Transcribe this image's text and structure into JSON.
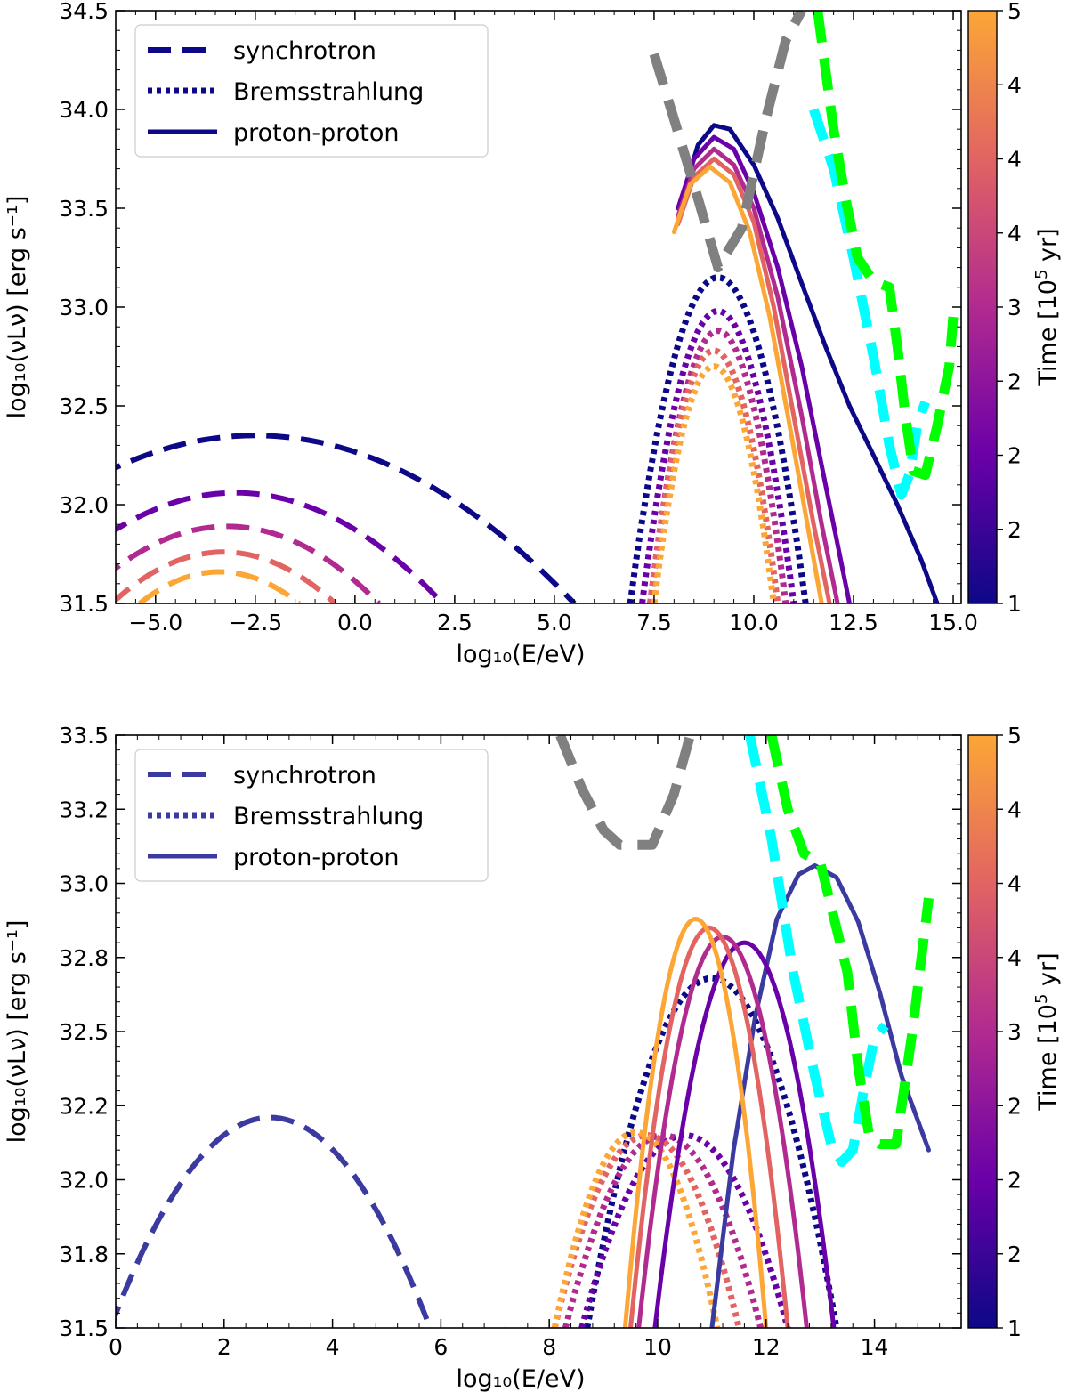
{
  "chart_data": [
    {
      "type": "line",
      "panel": "top",
      "xlabel": "log₁₀(E/eV)",
      "ylabel": "log₁₀(νLν) [erg s⁻¹]",
      "xlim": [
        -6.0,
        15.2
      ],
      "ylim": [
        31.5,
        34.5
      ],
      "xticks": [
        -5.0,
        -2.5,
        0.0,
        2.5,
        5.0,
        7.5,
        10.0,
        12.5,
        15.0
      ],
      "xtick_labels": [
        "−5.0",
        "−2.5",
        "0.0",
        "2.5",
        "5.0",
        "7.5",
        "10.0",
        "12.5",
        "15.0"
      ],
      "yticks": [
        31.5,
        32.0,
        32.5,
        33.0,
        33.5,
        34.0,
        34.5
      ],
      "ytick_labels": [
        "31.5",
        "32.0",
        "32.5",
        "33.0",
        "33.5",
        "34.0",
        "34.5"
      ],
      "legend": {
        "position": "top-left",
        "entries": [
          {
            "label": "synchrotron",
            "style": "dashed"
          },
          {
            "label": "Bremsstrahlung",
            "style": "dotted"
          },
          {
            "label": "proton-proton",
            "style": "solid"
          }
        ]
      },
      "colorbar": {
        "label": "Time [10⁵ yr]",
        "label_main": "Time [10",
        "label_sup": "5",
        "label_end": " yr]",
        "ticks": [
          "5",
          "4",
          "4",
          "4",
          "3",
          "2",
          "2",
          "2",
          "1"
        ],
        "range": [
          1,
          5
        ],
        "colors": [
          "#0d0887",
          "#6a00a8",
          "#b12a90",
          "#e16462",
          "#fca636"
        ]
      },
      "series": [
        {
          "name": "synchrotron t1",
          "component": "synchrotron",
          "color": "#0d0887",
          "peak": [
            -2.5,
            32.35
          ],
          "halfwidth": 8.0
        },
        {
          "name": "synchrotron t2",
          "component": "synchrotron",
          "color": "#6a00a8",
          "peak": [
            -3.0,
            32.06
          ],
          "halfwidth": 5.2
        },
        {
          "name": "synchrotron t3",
          "component": "synchrotron",
          "color": "#b12a90",
          "peak": [
            -3.2,
            31.89
          ],
          "halfwidth": 3.8
        },
        {
          "name": "synchrotron t4",
          "component": "synchrotron",
          "color": "#e16462",
          "peak": [
            -3.3,
            31.76
          ],
          "halfwidth": 2.8
        },
        {
          "name": "synchrotron t5",
          "component": "synchrotron",
          "color": "#fca636",
          "peak": [
            -3.4,
            31.66
          ],
          "halfwidth": 2.0
        },
        {
          "name": "Bremsstrahlung t1",
          "component": "Bremsstrahlung",
          "color": "#0d0887",
          "peak": [
            9.1,
            33.15
          ],
          "halfwidth": 2.2
        },
        {
          "name": "Bremsstrahlung t2",
          "component": "Bremsstrahlung",
          "color": "#6a00a8",
          "peak": [
            9.1,
            32.98
          ],
          "halfwidth": 1.9
        },
        {
          "name": "Bremsstrahlung t3",
          "component": "Bremsstrahlung",
          "color": "#b12a90",
          "peak": [
            9.1,
            32.88
          ],
          "halfwidth": 1.7
        },
        {
          "name": "Bremsstrahlung t4",
          "component": "Bremsstrahlung",
          "color": "#e16462",
          "peak": [
            9.0,
            32.78
          ],
          "halfwidth": 1.6
        },
        {
          "name": "Bremsstrahlung t5",
          "component": "Bremsstrahlung",
          "color": "#fca636",
          "peak": [
            9.0,
            32.7
          ],
          "halfwidth": 1.5
        },
        {
          "name": "proton-proton t1",
          "component": "proton-proton",
          "color": "#0d0887",
          "x": [
            8.2,
            8.6,
            9.0,
            9.4,
            10.0,
            10.6,
            11.2,
            11.8,
            12.4,
            13.0,
            13.6,
            14.2,
            14.6
          ],
          "y": [
            33.55,
            33.82,
            33.92,
            33.9,
            33.72,
            33.45,
            33.12,
            32.8,
            32.5,
            32.25,
            32.0,
            31.72,
            31.5
          ]
        },
        {
          "name": "proton-proton t2",
          "component": "proton-proton",
          "color": "#6a00a8",
          "x": [
            8.1,
            8.5,
            9.0,
            9.5,
            10.0,
            10.6,
            11.2,
            11.8,
            12.4
          ],
          "y": [
            33.5,
            33.75,
            33.86,
            33.8,
            33.58,
            33.2,
            32.7,
            32.1,
            31.5
          ]
        },
        {
          "name": "proton-proton t3",
          "component": "proton-proton",
          "color": "#b12a90",
          "x": [
            8.1,
            8.5,
            9.0,
            9.5,
            10.0,
            10.6,
            11.2,
            11.7,
            12.1
          ],
          "y": [
            33.46,
            33.7,
            33.8,
            33.72,
            33.5,
            33.05,
            32.45,
            31.9,
            31.5
          ]
        },
        {
          "name": "proton-proton t4",
          "component": "proton-proton",
          "color": "#e16462",
          "x": [
            8.1,
            8.5,
            9.0,
            9.5,
            10.0,
            10.5,
            11.0,
            11.5,
            11.9
          ],
          "y": [
            33.42,
            33.66,
            33.75,
            33.67,
            33.43,
            33.0,
            32.45,
            31.9,
            31.5
          ]
        },
        {
          "name": "proton-proton t5",
          "component": "proton-proton",
          "color": "#fca636",
          "x": [
            8.0,
            8.4,
            8.9,
            9.4,
            9.9,
            10.4,
            10.9,
            11.3,
            11.7
          ],
          "y": [
            33.38,
            33.62,
            33.71,
            33.63,
            33.38,
            32.95,
            32.4,
            31.95,
            31.5
          ]
        },
        {
          "name": "sensitivity grey",
          "component": "sensitivity",
          "color": "#808080",
          "x": [
            7.5,
            8.0,
            8.6,
            9.1,
            9.7,
            10.3,
            10.8,
            11.2
          ],
          "y": [
            34.28,
            33.95,
            33.55,
            33.2,
            33.4,
            33.95,
            34.35,
            34.5
          ]
        },
        {
          "name": "sensitivity cyan",
          "component": "sensitivity",
          "color": "#00ffff",
          "x": [
            11.5,
            12.0,
            12.5,
            13.0,
            13.4,
            13.7,
            13.9,
            14.1,
            14.3
          ],
          "y": [
            34.0,
            33.7,
            33.25,
            32.75,
            32.3,
            32.05,
            32.15,
            32.4,
            32.52
          ]
        },
        {
          "name": "sensitivity green",
          "component": "sensitivity",
          "color": "#00ff00",
          "x": [
            11.6,
            11.8,
            12.0,
            12.3,
            12.6,
            13.0,
            13.4,
            13.6,
            13.8,
            14.0,
            14.3,
            14.6,
            14.9,
            15.0
          ],
          "y": [
            34.5,
            34.2,
            33.9,
            33.55,
            33.25,
            33.13,
            33.1,
            32.8,
            32.45,
            32.17,
            32.15,
            32.4,
            32.7,
            32.95
          ]
        }
      ]
    },
    {
      "type": "line",
      "panel": "bottom",
      "xlabel": "log₁₀(E/eV)",
      "ylabel": "log₁₀(νLν) [erg s⁻¹]",
      "xlim": [
        0.0,
        15.6
      ],
      "ylim": [
        31.5,
        33.5
      ],
      "xticks": [
        0,
        2,
        4,
        6,
        8,
        10,
        12,
        14
      ],
      "xtick_labels": [
        "0",
        "2",
        "4",
        "6",
        "8",
        "10",
        "12",
        "14"
      ],
      "yticks": [
        31.5,
        31.75,
        32.0,
        32.25,
        32.5,
        32.75,
        33.0,
        33.25,
        33.5
      ],
      "ytick_labels": [
        "31.5",
        "31.8",
        "32.0",
        "32.2",
        "32.5",
        "32.8",
        "33.0",
        "33.2",
        "33.5"
      ],
      "legend": {
        "position": "top-left",
        "entries": [
          {
            "label": "synchrotron",
            "style": "dashed"
          },
          {
            "label": "Bremsstrahlung",
            "style": "dotted"
          },
          {
            "label": "proton-proton",
            "style": "solid"
          }
        ]
      },
      "colorbar": {
        "label": "Time [10⁵ yr]",
        "label_main": "Time [10",
        "label_sup": "5",
        "label_end": " yr]",
        "ticks": [
          "5",
          "4",
          "4",
          "4",
          "3",
          "2",
          "2",
          "2",
          "1"
        ],
        "range": [
          1,
          5
        ],
        "colors": [
          "#0d0887",
          "#6a00a8",
          "#b12a90",
          "#e16462",
          "#fca636"
        ]
      },
      "series": [
        {
          "name": "synchrotron",
          "component": "synchrotron",
          "color": "#3a3aa0",
          "peak": [
            2.85,
            32.21
          ],
          "halfwidth": 2.95
        },
        {
          "name": "Bremsstrahlung t1",
          "component": "Bremsstrahlung",
          "color": "#0d0887",
          "peak": [
            11.0,
            32.68
          ],
          "halfwidth": 2.3
        },
        {
          "name": "Bremsstrahlung t2",
          "component": "Bremsstrahlung",
          "color": "#6a00a8",
          "peak": [
            10.5,
            32.15
          ],
          "halfwidth": 1.9
        },
        {
          "name": "Bremsstrahlung t3",
          "component": "Bremsstrahlung",
          "color": "#b12a90",
          "peak": [
            10.1,
            32.15
          ],
          "halfwidth": 1.8
        },
        {
          "name": "Bremsstrahlung t4",
          "component": "Bremsstrahlung",
          "color": "#e16462",
          "peak": [
            9.8,
            32.15
          ],
          "halfwidth": 1.7
        },
        {
          "name": "Bremsstrahlung t5",
          "component": "Bremsstrahlung",
          "color": "#fca636",
          "peak": [
            9.6,
            32.16
          ],
          "halfwidth": 1.5
        },
        {
          "name": "proton-proton t1",
          "component": "proton-proton",
          "color": "#3a3aa0",
          "x": [
            11.0,
            11.4,
            11.8,
            12.2,
            12.6,
            12.9,
            13.3,
            13.7,
            14.1,
            14.5,
            15.0
          ],
          "y": [
            31.5,
            32.1,
            32.55,
            32.88,
            33.03,
            33.06,
            33.02,
            32.87,
            32.63,
            32.35,
            32.1
          ]
        },
        {
          "name": "proton-proton t2",
          "component": "proton-proton",
          "color": "#6a00a8",
          "peak": [
            11.6,
            32.8
          ],
          "halfwidth": 1.65
        },
        {
          "name": "proton-proton t3",
          "component": "proton-proton",
          "color": "#b12a90",
          "peak": [
            11.2,
            32.82
          ],
          "halfwidth": 1.55
        },
        {
          "name": "proton-proton t4",
          "component": "proton-proton",
          "color": "#e16462",
          "peak": [
            10.95,
            32.85
          ],
          "halfwidth": 1.45
        },
        {
          "name": "proton-proton t5",
          "component": "proton-proton",
          "color": "#fca636",
          "peak": [
            10.7,
            32.88
          ],
          "halfwidth": 1.3
        },
        {
          "name": "sensitivity grey",
          "component": "sensitivity",
          "color": "#808080",
          "x": [
            8.2,
            8.6,
            9.0,
            9.3,
            9.9,
            10.3,
            10.6
          ],
          "y": [
            33.5,
            33.32,
            33.18,
            33.13,
            33.13,
            33.3,
            33.5
          ]
        },
        {
          "name": "sensitivity cyan",
          "component": "sensitivity",
          "color": "#00ffff",
          "x": [
            11.7,
            12.1,
            12.5,
            12.9,
            13.2,
            13.4,
            13.6,
            13.8,
            14.0,
            14.2
          ],
          "y": [
            33.5,
            33.15,
            32.7,
            32.35,
            32.12,
            32.06,
            32.1,
            32.3,
            32.48,
            32.52
          ]
        },
        {
          "name": "sensitivity green",
          "component": "sensitivity",
          "color": "#00ff00",
          "x": [
            12.1,
            12.4,
            12.7,
            13.0,
            13.5,
            13.7,
            13.9,
            14.1,
            14.4,
            14.7,
            15.0
          ],
          "y": [
            33.5,
            33.25,
            33.1,
            33.07,
            32.7,
            32.38,
            32.15,
            32.12,
            32.12,
            32.5,
            32.95
          ]
        }
      ]
    }
  ]
}
